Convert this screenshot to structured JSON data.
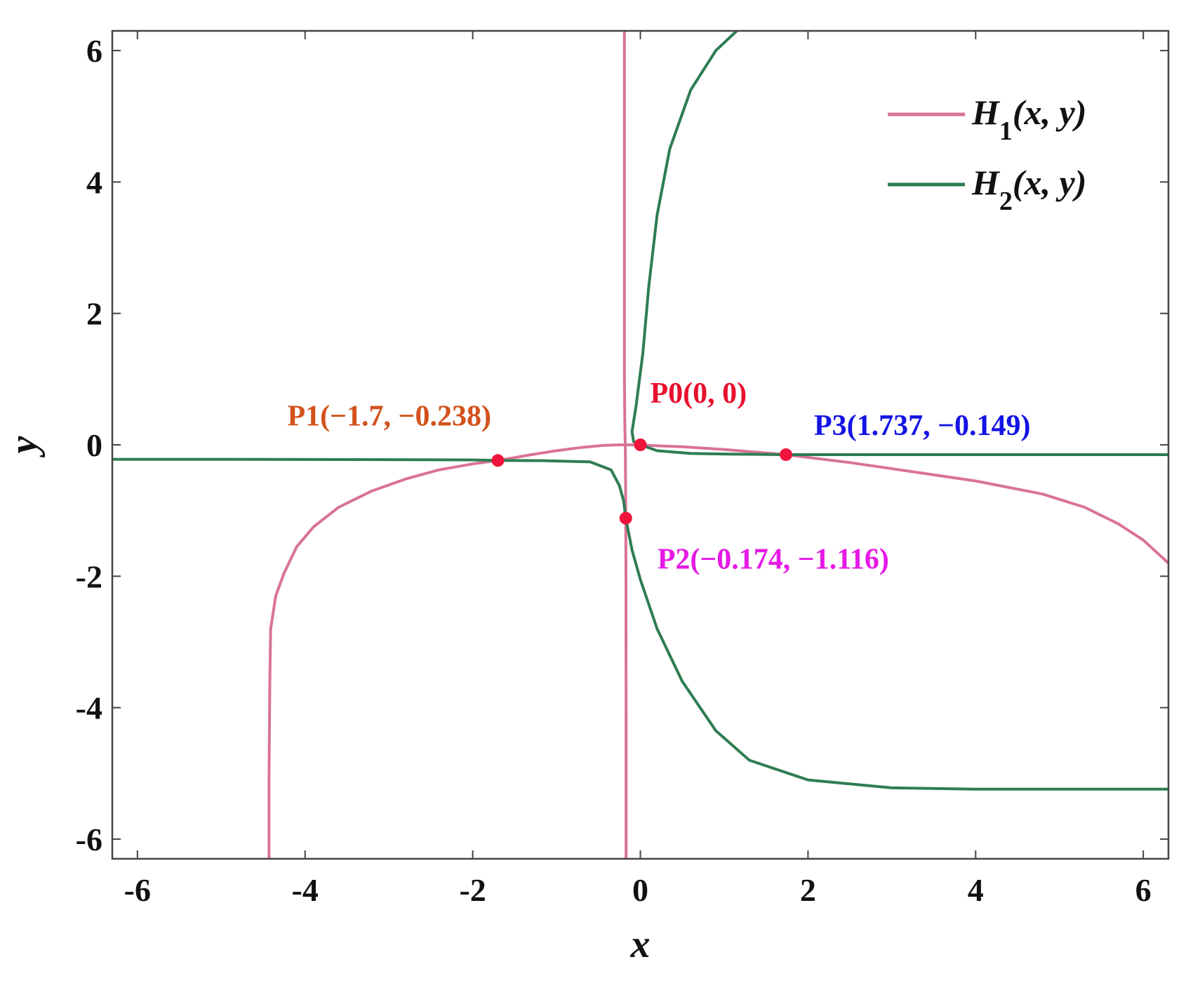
{
  "chart_data": {
    "type": "line",
    "title": "",
    "xlabel": "x",
    "ylabel": "y",
    "xlim": [
      -6.3,
      6.3
    ],
    "ylim": [
      -6.3,
      6.3
    ],
    "xticks": [
      -6,
      -4,
      -2,
      0,
      2,
      4,
      6
    ],
    "yticks": [
      -6,
      -4,
      -2,
      0,
      2,
      4,
      6
    ],
    "xtick_labels": [
      "-6",
      "-4",
      "-2",
      "0",
      "2",
      "4",
      "6"
    ],
    "ytick_labels": [
      "-6",
      "-4",
      "-2",
      "0",
      "2",
      "4",
      "6"
    ],
    "grid": false,
    "legend_position": "top-right",
    "series": [
      {
        "name": "H1(x, y)",
        "legend_main": "H",
        "legend_sub": "1",
        "legend_tail": "(x, y)",
        "color": "#d97396",
        "segments": [
          [
            [
              -4.43,
              -6.3
            ],
            [
              -4.43,
              -5.0
            ],
            [
              -4.42,
              -3.5
            ],
            [
              -4.41,
              -2.8
            ],
            [
              -4.35,
              -2.3
            ],
            [
              -4.25,
              -1.95
            ],
            [
              -4.1,
              -1.55
            ],
            [
              -3.9,
              -1.25
            ],
            [
              -3.6,
              -0.95
            ],
            [
              -3.2,
              -0.7
            ],
            [
              -2.8,
              -0.52
            ],
            [
              -2.4,
              -0.38
            ],
            [
              -2.0,
              -0.29
            ],
            [
              -1.7,
              -0.238
            ],
            [
              -1.3,
              -0.15
            ],
            [
              -1.0,
              -0.09
            ],
            [
              -0.7,
              -0.04
            ],
            [
              -0.45,
              -0.01
            ],
            [
              -0.25,
              0.0
            ],
            [
              0.0,
              0.0
            ],
            [
              0.1,
              -0.01
            ],
            [
              0.5,
              -0.03
            ],
            [
              1.0,
              -0.07
            ],
            [
              1.737,
              -0.149
            ],
            [
              2.5,
              -0.27
            ],
            [
              3.2,
              -0.4
            ],
            [
              4.0,
              -0.55
            ],
            [
              4.8,
              -0.75
            ],
            [
              5.3,
              -0.95
            ],
            [
              5.7,
              -1.2
            ],
            [
              6.0,
              -1.45
            ],
            [
              6.3,
              -1.8
            ]
          ],
          [
            [
              -0.19,
              6.3
            ],
            [
              -0.19,
              4.0
            ],
            [
              -0.19,
              2.0
            ],
            [
              -0.19,
              1.0
            ],
            [
              -0.185,
              0.3
            ],
            [
              -0.18,
              0.0
            ],
            [
              -0.177,
              -0.5
            ],
            [
              -0.174,
              -1.116
            ],
            [
              -0.172,
              -2.0
            ],
            [
              -0.17,
              -4.0
            ],
            [
              -0.17,
              -6.3
            ]
          ]
        ]
      },
      {
        "name": "H2(x, y)",
        "legend_main": "H",
        "legend_sub": "2",
        "legend_tail": "(x, y)",
        "color": "#2e7d52",
        "segments": [
          [
            [
              -6.3,
              -0.22
            ],
            [
              -5.0,
              -0.22
            ],
            [
              -3.0,
              -0.225
            ],
            [
              -2.0,
              -0.23
            ],
            [
              -1.7,
              -0.238
            ],
            [
              -1.2,
              -0.24
            ],
            [
              -0.6,
              -0.26
            ],
            [
              -0.35,
              -0.38
            ],
            [
              -0.25,
              -0.62
            ],
            [
              -0.2,
              -0.85
            ],
            [
              -0.174,
              -1.116
            ],
            [
              -0.1,
              -1.6
            ],
            [
              0.0,
              -2.05
            ],
            [
              0.2,
              -2.8
            ],
            [
              0.5,
              -3.6
            ],
            [
              0.9,
              -4.35
            ],
            [
              1.3,
              -4.8
            ],
            [
              2.0,
              -5.1
            ],
            [
              3.0,
              -5.22
            ],
            [
              4.0,
              -5.24
            ],
            [
              5.0,
              -5.24
            ],
            [
              6.3,
              -5.24
            ]
          ],
          [
            [
              1.15,
              6.3
            ],
            [
              0.9,
              6.0
            ],
            [
              0.6,
              5.4
            ],
            [
              0.35,
              4.5
            ],
            [
              0.2,
              3.5
            ],
            [
              0.1,
              2.4
            ],
            [
              0.03,
              1.4
            ],
            [
              -0.05,
              0.6
            ],
            [
              -0.1,
              0.2
            ],
            [
              -0.08,
              0.05
            ],
            [
              0.0,
              0.0
            ],
            [
              0.2,
              -0.09
            ],
            [
              0.6,
              -0.13
            ],
            [
              1.0,
              -0.14
            ],
            [
              1.737,
              -0.149
            ],
            [
              2.5,
              -0.15
            ],
            [
              4.0,
              -0.15
            ],
            [
              6.3,
              -0.15
            ]
          ]
        ]
      }
    ],
    "points": [
      {
        "label": "P0(0, 0)",
        "x": 0.0,
        "y": 0.0,
        "color": "#e8112d",
        "anchor": "upper-right"
      },
      {
        "label": "P1(−1.7, −0.238)",
        "x": -1.7,
        "y": -0.238,
        "color": "#d2521b",
        "anchor": "upper-left"
      },
      {
        "label": "P2(−0.174, −1.116)",
        "x": -0.174,
        "y": -1.116,
        "color": "#e619e6",
        "anchor": "lower-right"
      },
      {
        "label": "P3(1.737, −0.149)",
        "x": 1.737,
        "y": -0.149,
        "color": "#1414e6",
        "anchor": "upper-right"
      }
    ],
    "marker_color": "#f0143c"
  }
}
